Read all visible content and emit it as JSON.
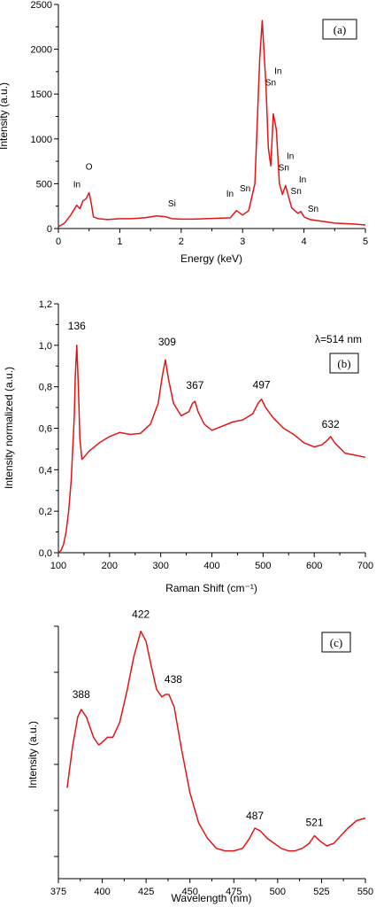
{
  "chart_data": [
    {
      "panel": "(a)",
      "type": "line",
      "xlabel": "Energy (keV)",
      "ylabel": "Intensity (a.u.)",
      "xlim": [
        0,
        5
      ],
      "ylim": [
        0,
        2500
      ],
      "xticks": [
        "0",
        "1",
        "2",
        "3",
        "4",
        "5"
      ],
      "yticks": [
        "0",
        "500",
        "1000",
        "1500",
        "2000",
        "2500"
      ],
      "color": "#e01515",
      "x": [
        0.0,
        0.1,
        0.2,
        0.3,
        0.35,
        0.4,
        0.45,
        0.5,
        0.53,
        0.57,
        0.65,
        0.8,
        1.0,
        1.2,
        1.4,
        1.6,
        1.75,
        1.85,
        2.0,
        2.2,
        2.4,
        2.6,
        2.8,
        2.9,
        3.0,
        3.1,
        3.2,
        3.28,
        3.32,
        3.38,
        3.42,
        3.46,
        3.5,
        3.55,
        3.6,
        3.65,
        3.7,
        3.75,
        3.8,
        3.9,
        3.95,
        4.0,
        4.1,
        4.2,
        4.3,
        4.5,
        4.8,
        5.0
      ],
      "y": [
        20,
        60,
        150,
        260,
        220,
        310,
        330,
        400,
        300,
        130,
        110,
        100,
        110,
        110,
        120,
        140,
        130,
        110,
        105,
        105,
        110,
        115,
        120,
        200,
        150,
        200,
        500,
        1900,
        2320,
        1600,
        900,
        700,
        1280,
        1100,
        500,
        380,
        480,
        350,
        230,
        170,
        190,
        130,
        100,
        90,
        80,
        60,
        50,
        40
      ],
      "peak_labels": [
        {
          "text": "In",
          "x": 0.33,
          "y": 260
        },
        {
          "text": "O",
          "x": 0.5,
          "y": 400
        },
        {
          "text": "Si",
          "x": 1.85,
          "y": 130
        },
        {
          "text": "In",
          "x": 2.88,
          "y": 200
        },
        {
          "text": "Sn",
          "x": 3.1,
          "y": 200
        },
        {
          "text": "In",
          "x": 3.32,
          "y": 2320
        },
        {
          "text": "In",
          "x": 3.52,
          "y": 1280
        },
        {
          "text": "Sn",
          "x": 3.5,
          "y": 1280
        },
        {
          "text": "In",
          "x": 3.72,
          "y": 480
        },
        {
          "text": "Sn",
          "x": 3.7,
          "y": 480
        },
        {
          "text": "In",
          "x": 3.92,
          "y": 190
        },
        {
          "text": "Sn",
          "x": 3.9,
          "y": 190
        },
        {
          "text": "Sn",
          "x": 4.15,
          "y": 90
        }
      ]
    },
    {
      "panel": "(b)",
      "type": "line",
      "xlabel": "Raman Shift (cm⁻¹)",
      "ylabel": "Intensity normalized (a.u.)",
      "annotation": "λ=514 nm",
      "xlim": [
        100,
        700
      ],
      "ylim": [
        0,
        1.2
      ],
      "xticks": [
        "100",
        "200",
        "300",
        "400",
        "500",
        "600",
        "700"
      ],
      "yticks": [
        "0,0",
        "0,2",
        "0,4",
        "0,6",
        "0,8",
        "1,0",
        "1,2"
      ],
      "color": "#e01515",
      "x": [
        100,
        105,
        110,
        115,
        120,
        125,
        128,
        131,
        133,
        136,
        139,
        142,
        146,
        150,
        160,
        180,
        200,
        220,
        240,
        260,
        280,
        295,
        303,
        309,
        315,
        325,
        340,
        355,
        362,
        367,
        373,
        385,
        400,
        420,
        440,
        460,
        480,
        490,
        497,
        505,
        520,
        540,
        560,
        580,
        600,
        615,
        625,
        632,
        640,
        660,
        680,
        700
      ],
      "y": [
        0.0,
        0.01,
        0.04,
        0.1,
        0.2,
        0.35,
        0.5,
        0.65,
        0.85,
        1.0,
        0.8,
        0.55,
        0.45,
        0.46,
        0.49,
        0.53,
        0.56,
        0.58,
        0.57,
        0.575,
        0.62,
        0.72,
        0.85,
        0.93,
        0.84,
        0.72,
        0.66,
        0.68,
        0.72,
        0.73,
        0.68,
        0.62,
        0.59,
        0.61,
        0.63,
        0.64,
        0.67,
        0.72,
        0.74,
        0.7,
        0.65,
        0.6,
        0.57,
        0.53,
        0.51,
        0.52,
        0.54,
        0.56,
        0.53,
        0.48,
        0.47,
        0.46
      ],
      "peak_labels": [
        {
          "text": "136",
          "x": 136,
          "y": 1.0
        },
        {
          "text": "309",
          "x": 309,
          "y": 0.93
        },
        {
          "text": "367",
          "x": 367,
          "y": 0.73
        },
        {
          "text": "497",
          "x": 497,
          "y": 0.74
        },
        {
          "text": "632",
          "x": 632,
          "y": 0.56
        }
      ]
    },
    {
      "panel": "(c)",
      "type": "line",
      "xlabel": "Wavelength (nm)",
      "ylabel": "Intensity (a.u.)",
      "xlim": [
        375,
        550
      ],
      "ylim": [
        0,
        1.0
      ],
      "xticks": [
        "375",
        "400",
        "425",
        "450",
        "475",
        "500",
        "525",
        "550"
      ],
      "yticks": [],
      "color": "#e01515",
      "x": [
        380,
        383,
        386,
        388,
        391,
        395,
        398,
        400,
        403,
        406,
        410,
        414,
        418,
        422,
        425,
        428,
        431,
        434,
        436,
        438,
        441,
        445,
        450,
        455,
        460,
        465,
        470,
        475,
        480,
        484,
        487,
        490,
        494,
        498,
        502,
        506,
        510,
        514,
        518,
        521,
        524,
        528,
        532,
        536,
        540,
        545,
        550
      ],
      "y": [
        0.36,
        0.52,
        0.64,
        0.67,
        0.64,
        0.56,
        0.53,
        0.54,
        0.56,
        0.56,
        0.62,
        0.74,
        0.88,
        0.98,
        0.94,
        0.84,
        0.75,
        0.72,
        0.73,
        0.73,
        0.68,
        0.52,
        0.34,
        0.22,
        0.16,
        0.12,
        0.11,
        0.11,
        0.12,
        0.16,
        0.2,
        0.19,
        0.16,
        0.14,
        0.12,
        0.11,
        0.11,
        0.12,
        0.14,
        0.17,
        0.15,
        0.13,
        0.14,
        0.17,
        0.2,
        0.23,
        0.24
      ],
      "peak_labels": [
        {
          "text": "388",
          "x": 388,
          "y": 0.67
        },
        {
          "text": "422",
          "x": 422,
          "y": 0.98
        },
        {
          "text": "438",
          "x": 438,
          "y": 0.73
        },
        {
          "text": "487",
          "x": 487,
          "y": 0.2
        },
        {
          "text": "521",
          "x": 521,
          "y": 0.17
        }
      ]
    }
  ]
}
